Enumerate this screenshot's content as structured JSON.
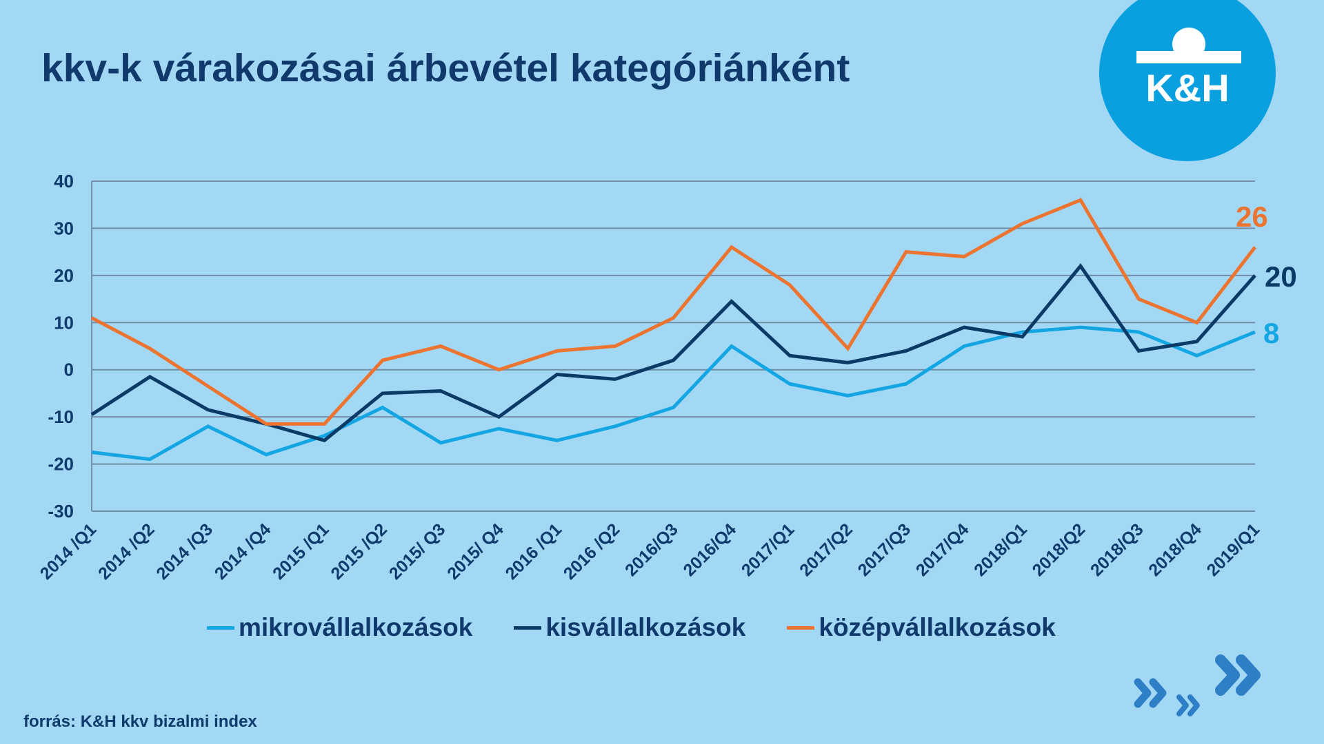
{
  "title": "kkv-k várakozásai árbevétel kategóriánként",
  "source": "forrás: K&H kkv bizalmi index",
  "logo": {
    "text": "K&H",
    "color": "#0aa0e0"
  },
  "chart_data": {
    "type": "line",
    "title": "kkv-k várakozásai árbevétel kategóriánként",
    "categories": [
      "2014 /Q1",
      "2014 /Q2",
      "2014 /Q3",
      "2014 /Q4",
      "2015 /Q1",
      "2015 /Q2",
      "2015/ Q3",
      "2015/ Q4",
      "2016 /Q1",
      "2016 /Q2",
      "2016/Q3",
      "2016/Q4",
      "2017/Q1",
      "2017/Q2",
      "2017/Q3",
      "2017/Q4",
      "2018/Q1",
      "2018/Q2",
      "2018/Q3",
      "2018/Q4",
      "2019/Q1"
    ],
    "ylim": [
      -30,
      40
    ],
    "yticks": [
      "40",
      "30",
      "20",
      "10",
      "0",
      "-10",
      "-20",
      "-30"
    ],
    "grid": true,
    "legend": "bottom",
    "series": [
      {
        "name": "mikrovállalkozások",
        "color": "#14a6e3",
        "end_label": "8",
        "values": [
          -17.5,
          -19,
          -12,
          -18,
          -14,
          -8,
          -15.5,
          -12.5,
          -15,
          -12,
          -8,
          5,
          -3,
          -5.5,
          -3,
          5,
          8,
          9,
          8,
          3,
          8
        ]
      },
      {
        "name": "kisvállalkozások",
        "color": "#0b3a66",
        "end_label": "20",
        "values": [
          -9.5,
          -1.5,
          -8.5,
          -11.5,
          -15,
          -5,
          -4.5,
          -10,
          -1,
          -2,
          2,
          14.5,
          3,
          1.5,
          4,
          9,
          7,
          22,
          4,
          6,
          20
        ]
      },
      {
        "name": "középvállalkozások",
        "color": "#ec7431",
        "end_label": "26",
        "values": [
          11,
          4.5,
          -3.5,
          -11.5,
          -11.5,
          2,
          5,
          0,
          4,
          5,
          11,
          26,
          18,
          4.5,
          25,
          24,
          31,
          36,
          15,
          10,
          26
        ]
      }
    ]
  }
}
